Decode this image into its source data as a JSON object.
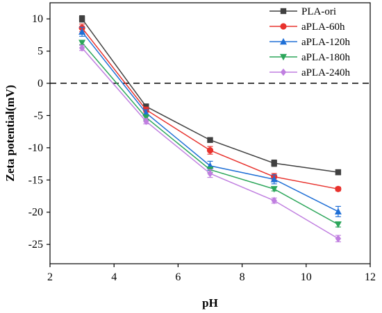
{
  "chart_data": {
    "type": "line",
    "title": "",
    "xlabel": "pH",
    "ylabel": "Zeta potential(mV)",
    "xlim": [
      2,
      12
    ],
    "ylim": [
      -28,
      12.5
    ],
    "xticks": [
      2,
      4,
      6,
      8,
      10,
      12
    ],
    "yticks": [
      10,
      5,
      0,
      -5,
      -10,
      -15,
      -20,
      -25
    ],
    "ytick_labels": [
      "10",
      "5",
      "0",
      "-5",
      "-10",
      "-15",
      "-20",
      "-25"
    ],
    "grid": false,
    "legend_position": "top-right",
    "reference_line": {
      "y": 0,
      "style": "dashed"
    },
    "x": [
      3,
      5,
      7,
      9,
      11
    ],
    "series": [
      {
        "name": "PLA-ori",
        "color": "#404040",
        "marker": "square",
        "values": [
          10.0,
          -3.6,
          -8.8,
          -12.4,
          -13.8
        ],
        "errors": [
          0.5,
          0.4,
          0.3,
          0.5,
          0.4
        ]
      },
      {
        "name": "aPLA-60h",
        "color": "#e8322d",
        "marker": "circle",
        "values": [
          8.6,
          -4.1,
          -10.4,
          -14.5,
          -16.4
        ],
        "errors": [
          0.6,
          0.4,
          0.6,
          0.5,
          0.3
        ]
      },
      {
        "name": "aPLA-120h",
        "color": "#1f6fd6",
        "marker": "triangle-up",
        "values": [
          8.0,
          -4.6,
          -12.8,
          -14.9,
          -19.9
        ],
        "errors": [
          0.7,
          0.5,
          0.7,
          0.7,
          0.8
        ]
      },
      {
        "name": "aPLA-180h",
        "color": "#2ca65a",
        "marker": "triangle-down",
        "values": [
          6.3,
          -5.3,
          -13.4,
          -16.4,
          -21.9
        ],
        "errors": [
          0.3,
          0.4,
          0.4,
          0.3,
          0.4
        ]
      },
      {
        "name": "aPLA-240h",
        "color": "#c07fe0",
        "marker": "diamond",
        "values": [
          5.5,
          -5.9,
          -14.0,
          -18.2,
          -24.1
        ],
        "errors": [
          0.4,
          0.4,
          0.6,
          0.4,
          0.5
        ]
      }
    ]
  }
}
